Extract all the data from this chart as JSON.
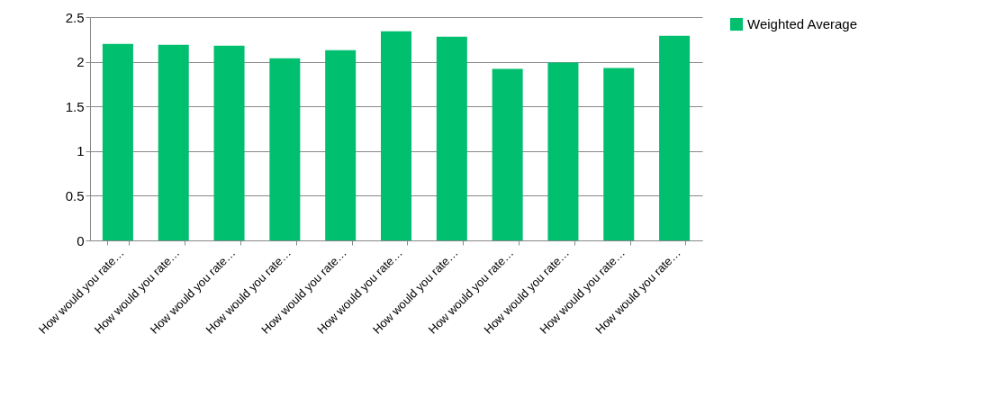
{
  "chart_data": {
    "type": "bar",
    "categories": [
      "How would you rate…",
      "How would you rate…",
      "How would you rate…",
      "How would you rate…",
      "How would you rate…",
      "How would you rate…",
      "How would you rate…",
      "How would you rate…",
      "How would you rate…",
      "How would you rate…",
      "How would you rate…"
    ],
    "series": [
      {
        "name": "Weighted Average",
        "color": "#00bf6f",
        "values": [
          2.2,
          2.19,
          2.18,
          2.04,
          2.13,
          2.34,
          2.28,
          1.92,
          1.99,
          1.93,
          2.29
        ]
      }
    ],
    "ylim": [
      0,
      2.5
    ],
    "yticks": [
      0,
      0.5,
      1,
      1.5,
      2,
      2.5
    ],
    "grid": "y",
    "legend": "right"
  }
}
